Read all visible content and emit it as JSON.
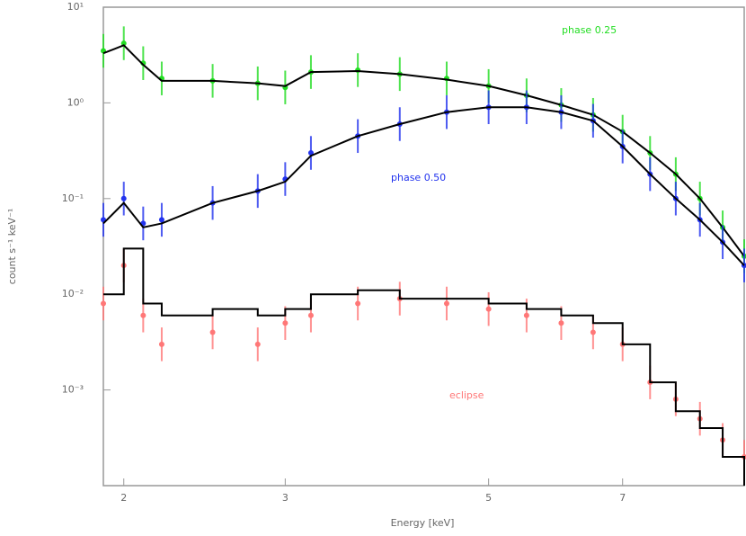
{
  "chart_data": {
    "type": "line",
    "xlabel": "Energy [keV]",
    "ylabel": "count s⁻¹ keV⁻¹",
    "xscale": "log",
    "yscale": "log",
    "xlim": [
      1.9,
      9.5
    ],
    "ylim": [
      0.0001,
      10
    ],
    "xticks": [
      2,
      3,
      5,
      7
    ],
    "yticks": [
      {
        "value": 0.001,
        "label": "10⁻³"
      },
      {
        "value": 0.01,
        "label": "10⁻²"
      },
      {
        "value": 0.1,
        "label": "10⁻¹"
      },
      {
        "value": 1,
        "label": "10⁰"
      },
      {
        "value": 10,
        "label": "10¹"
      }
    ],
    "model_color": "#000000",
    "series": [
      {
        "name": "phase 0.25",
        "color": "#22dd22",
        "x": [
          1.9,
          2.0,
          2.1,
          2.2,
          2.5,
          2.8,
          3.0,
          3.2,
          3.6,
          4.0,
          4.5,
          5.0,
          5.5,
          6.0,
          6.5,
          7.0,
          7.5,
          8.0,
          8.5,
          9.0,
          9.5
        ],
        "values": [
          3.5,
          4.2,
          2.6,
          1.8,
          1.7,
          1.6,
          1.45,
          2.1,
          2.2,
          2.0,
          1.8,
          1.5,
          1.2,
          0.95,
          0.75,
          0.5,
          0.3,
          0.18,
          0.1,
          0.05,
          0.025
        ],
        "model": [
          3.3,
          4.0,
          2.5,
          1.7,
          1.7,
          1.6,
          1.5,
          2.1,
          2.15,
          2.0,
          1.75,
          1.5,
          1.2,
          0.95,
          0.75,
          0.5,
          0.3,
          0.18,
          0.1,
          0.05,
          0.025
        ],
        "drawstyle": "line"
      },
      {
        "name": "phase 0.50",
        "color": "#2233ee",
        "x": [
          1.9,
          2.0,
          2.1,
          2.2,
          2.5,
          2.8,
          3.0,
          3.2,
          3.6,
          4.0,
          4.5,
          5.0,
          5.5,
          6.0,
          6.5,
          7.0,
          7.5,
          8.0,
          8.5,
          9.0,
          9.5
        ],
        "values": [
          0.06,
          0.1,
          0.055,
          0.06,
          0.09,
          0.12,
          0.16,
          0.3,
          0.45,
          0.6,
          0.8,
          0.9,
          0.9,
          0.8,
          0.65,
          0.35,
          0.18,
          0.1,
          0.06,
          0.035,
          0.02
        ],
        "model": [
          0.055,
          0.09,
          0.05,
          0.055,
          0.09,
          0.12,
          0.15,
          0.28,
          0.45,
          0.6,
          0.8,
          0.9,
          0.9,
          0.8,
          0.65,
          0.35,
          0.18,
          0.1,
          0.06,
          0.035,
          0.02
        ],
        "drawstyle": "line"
      },
      {
        "name": "eclipse",
        "color": "#ff7777",
        "x": [
          1.9,
          2.0,
          2.1,
          2.2,
          2.5,
          2.8,
          3.0,
          3.2,
          3.6,
          4.0,
          4.5,
          5.0,
          5.5,
          6.0,
          6.5,
          7.0,
          7.5,
          8.0,
          8.5,
          9.0,
          9.5
        ],
        "values": [
          0.008,
          0.02,
          0.006,
          0.003,
          0.004,
          0.003,
          0.005,
          0.006,
          0.008,
          0.009,
          0.008,
          0.007,
          0.006,
          0.005,
          0.004,
          0.003,
          0.0012,
          0.0008,
          0.0005,
          0.0003,
          0.0002
        ],
        "model": [
          0.01,
          0.03,
          0.008,
          0.006,
          0.007,
          0.006,
          0.007,
          0.01,
          0.011,
          0.009,
          0.009,
          0.008,
          0.007,
          0.006,
          0.005,
          0.003,
          0.0012,
          0.0006,
          0.0004,
          0.0002,
          8e-05
        ],
        "drawstyle": "steps"
      }
    ]
  }
}
